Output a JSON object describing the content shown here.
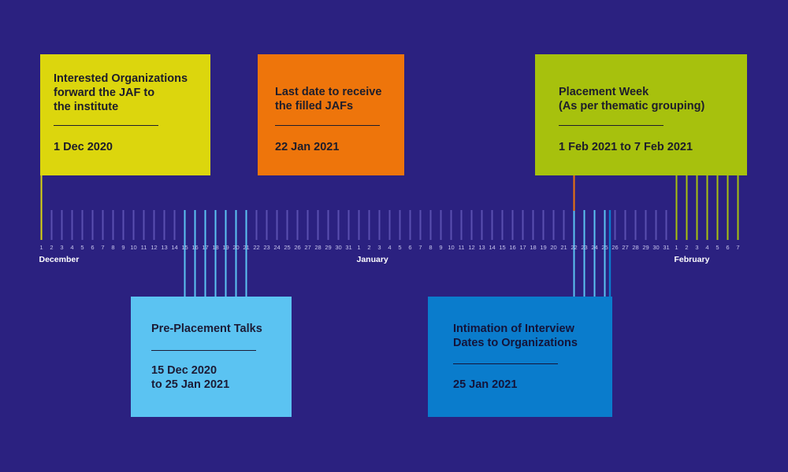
{
  "colors": {
    "background": "#2b2180",
    "tick_default": "#5a4fb0",
    "yellow": "#dcd60d",
    "orange": "#ee750b",
    "green": "#a7c10d",
    "light_blue": "#5bc3f2",
    "blue": "#0a7ccc"
  },
  "timeline": {
    "months": [
      {
        "label": "December",
        "days": 31
      },
      {
        "label": "January",
        "days": 31
      },
      {
        "label": "February",
        "days": 7
      }
    ]
  },
  "events": {
    "jaf_forward": {
      "title": "Interested Organizations\nforward the JAF to\nthe institute",
      "date": "1 Dec 2020"
    },
    "jaf_last_date": {
      "title": "Last date to receive\nthe filled JAFs",
      "date": "22 Jan 2021"
    },
    "placement_week": {
      "title": "Placement Week\n(As per thematic grouping)",
      "date": "1 Feb 2021 to 7 Feb 2021"
    },
    "pre_placement": {
      "title": "Pre-Placement Talks",
      "date": "15 Dec 2020\nto 25 Jan 2021"
    },
    "interview_dates": {
      "title": "Intimation of Interview\nDates to Organizations",
      "date": "25 Jan 2021"
    }
  }
}
